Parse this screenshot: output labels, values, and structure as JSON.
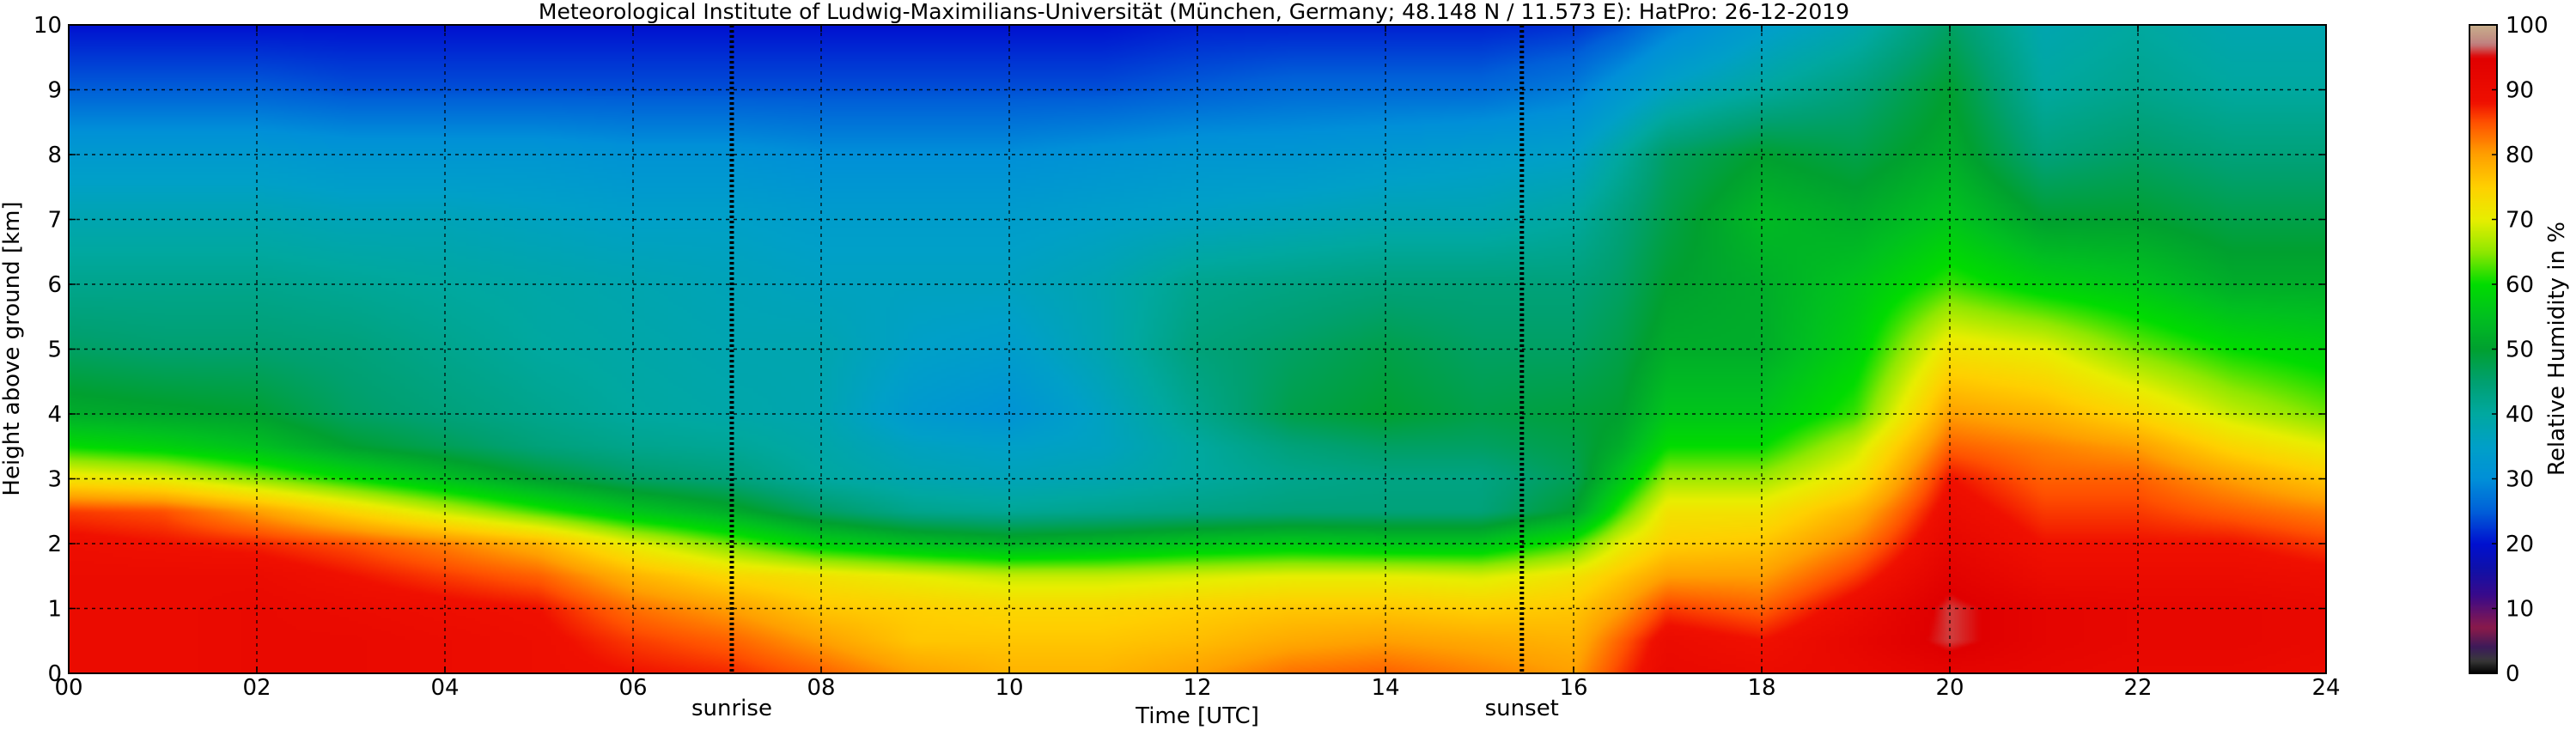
{
  "chart_data": {
    "type": "heatmap",
    "title": "Meteorological Institute of Ludwig-Maximilians-Universität (München, Germany; 48.148 N / 11.573 E):    HatPro: 26-12-2019",
    "xlabel": "Time [UTC]",
    "ylabel": "Height above ground [km]",
    "colorbar_label": "Relative Humidity in %",
    "xlim": [
      0,
      24
    ],
    "ylim": [
      0,
      10
    ],
    "x_ticks": [
      0,
      2,
      4,
      6,
      8,
      10,
      12,
      14,
      16,
      18,
      20,
      22,
      24
    ],
    "x_tick_labels": [
      "00",
      "02",
      "04",
      "06",
      "08",
      "10",
      "12",
      "14",
      "16",
      "18",
      "20",
      "22",
      "24"
    ],
    "y_ticks": [
      0,
      1,
      2,
      3,
      4,
      5,
      6,
      7,
      8,
      9,
      10
    ],
    "y_tick_labels": [
      "0",
      "1",
      "2",
      "3",
      "4",
      "5",
      "6",
      "7",
      "8",
      "9",
      "10"
    ],
    "colorbar_ticks": [
      0,
      10,
      20,
      30,
      40,
      50,
      60,
      70,
      80,
      90,
      100
    ],
    "colorbar_tick_labels": [
      "0",
      "10",
      "20",
      "30",
      "40",
      "50",
      "60",
      "70",
      "80",
      "90",
      "100"
    ],
    "grid": true,
    "markers": [
      {
        "label": "sunrise",
        "x": 7.05
      },
      {
        "label": "sunset",
        "x": 15.45
      }
    ],
    "colorscale": [
      {
        "value": 0,
        "color": "#000000"
      },
      {
        "value": 2,
        "color": "#3a3a3a"
      },
      {
        "value": 4,
        "color": "#3b1a5a"
      },
      {
        "value": 7,
        "color": "#8b1a4a"
      },
      {
        "value": 12,
        "color": "#3a0a8a"
      },
      {
        "value": 16,
        "color": "#1010a8"
      },
      {
        "value": 20,
        "color": "#0010d0"
      },
      {
        "value": 25,
        "color": "#0060d8"
      },
      {
        "value": 30,
        "color": "#0090d8"
      },
      {
        "value": 35,
        "color": "#00a0c8"
      },
      {
        "value": 40,
        "color": "#00a8a0"
      },
      {
        "value": 45,
        "color": "#00a070"
      },
      {
        "value": 50,
        "color": "#00a030"
      },
      {
        "value": 55,
        "color": "#00c020"
      },
      {
        "value": 60,
        "color": "#00dc00"
      },
      {
        "value": 65,
        "color": "#90e800"
      },
      {
        "value": 70,
        "color": "#e8ee00"
      },
      {
        "value": 75,
        "color": "#ffd000"
      },
      {
        "value": 80,
        "color": "#ffa000"
      },
      {
        "value": 85,
        "color": "#ff5000"
      },
      {
        "value": 88,
        "color": "#f01000"
      },
      {
        "value": 95,
        "color": "#e00000"
      },
      {
        "value": 97,
        "color": "#c08080"
      },
      {
        "value": 100,
        "color": "#c8b08c"
      }
    ],
    "rh_time": [
      0,
      1,
      2,
      3,
      4,
      5,
      6,
      7,
      8,
      9,
      10,
      11,
      12,
      13,
      14,
      15,
      16,
      16.5,
      17,
      18,
      19,
      20,
      21,
      22,
      23,
      24
    ],
    "rh_height": [
      0,
      0.5,
      1,
      1.5,
      2,
      2.5,
      3,
      3.5,
      4,
      5,
      6,
      7,
      8,
      9,
      10
    ],
    "rh_values": [
      [
        90,
        90,
        90,
        90,
        89,
        86,
        72,
        60,
        52,
        46,
        42,
        38,
        33,
        25,
        20
      ],
      [
        90,
        90,
        90,
        90,
        88,
        85,
        70,
        58,
        51,
        45,
        42,
        38,
        33,
        25,
        20
      ],
      [
        91,
        91,
        91,
        90,
        87,
        80,
        65,
        55,
        50,
        45,
        42,
        38,
        33,
        25,
        20
      ],
      [
        91,
        91,
        90,
        88,
        85,
        74,
        60,
        50,
        46,
        44,
        41,
        37,
        32,
        24,
        20
      ],
      [
        90,
        90,
        89,
        86,
        82,
        68,
        55,
        47,
        44,
        42,
        40,
        37,
        32,
        24,
        20
      ],
      [
        89,
        89,
        88,
        84,
        78,
        62,
        50,
        44,
        42,
        40,
        39,
        36,
        32,
        24,
        20
      ],
      [
        88,
        86,
        83,
        78,
        70,
        56,
        46,
        42,
        40,
        39,
        38,
        35,
        31,
        24,
        20
      ],
      [
        87,
        84,
        80,
        74,
        64,
        52,
        44,
        41,
        39,
        38,
        37,
        35,
        31,
        24,
        20
      ],
      [
        84,
        80,
        76,
        72,
        58,
        46,
        40,
        39,
        38,
        38,
        36,
        34,
        30,
        24,
        20
      ],
      [
        80,
        76,
        75,
        70,
        55,
        42,
        38,
        36,
        33,
        35,
        36,
        34,
        30,
        24,
        20
      ],
      [
        78,
        76,
        74,
        68,
        53,
        41,
        37,
        35,
        31,
        34,
        36,
        34,
        30,
        24,
        20
      ],
      [
        78,
        76,
        74,
        68,
        54,
        42,
        38,
        36,
        36,
        38,
        38,
        35,
        31,
        24,
        20
      ],
      [
        80,
        77,
        75,
        69,
        56,
        43,
        40,
        40,
        42,
        44,
        42,
        36,
        32,
        25,
        21
      ],
      [
        83,
        79,
        76,
        70,
        57,
        44,
        42,
        44,
        48,
        46,
        43,
        37,
        32,
        26,
        21
      ],
      [
        84,
        80,
        76,
        70,
        56,
        44,
        43,
        46,
        50,
        48,
        44,
        38,
        33,
        26,
        21
      ],
      [
        82,
        79,
        75,
        69,
        56,
        44,
        43,
        46,
        48,
        46,
        44,
        38,
        34,
        26,
        21
      ],
      [
        80,
        78,
        76,
        72,
        62,
        50,
        47,
        48,
        49,
        46,
        44,
        40,
        35,
        28,
        22
      ],
      [
        86,
        84,
        80,
        76,
        70,
        62,
        56,
        52,
        50,
        48,
        46,
        44,
        40,
        32,
        24
      ],
      [
        91,
        90,
        86,
        80,
        75,
        72,
        66,
        60,
        56,
        52,
        50,
        48,
        46,
        36,
        28
      ],
      [
        90,
        88,
        84,
        80,
        76,
        72,
        66,
        60,
        56,
        52,
        52,
        54,
        50,
        40,
        34
      ],
      [
        91,
        92,
        90,
        86,
        82,
        78,
        72,
        68,
        62,
        58,
        56,
        52,
        48,
        44,
        38
      ],
      [
        93,
        96,
        96,
        94,
        92,
        90,
        88,
        84,
        80,
        72,
        62,
        56,
        52,
        50,
        46
      ],
      [
        92,
        93,
        93,
        90,
        88,
        86,
        84,
        82,
        78,
        70,
        58,
        50,
        44,
        40,
        38
      ],
      [
        91,
        92,
        92,
        90,
        88,
        86,
        84,
        80,
        74,
        64,
        56,
        50,
        46,
        42,
        40
      ],
      [
        91,
        92,
        92,
        90,
        88,
        84,
        80,
        74,
        68,
        60,
        52,
        48,
        44,
        40,
        38
      ],
      [
        90,
        91,
        91,
        89,
        86,
        82,
        76,
        70,
        64,
        58,
        52,
        48,
        44,
        40,
        38
      ]
    ]
  }
}
